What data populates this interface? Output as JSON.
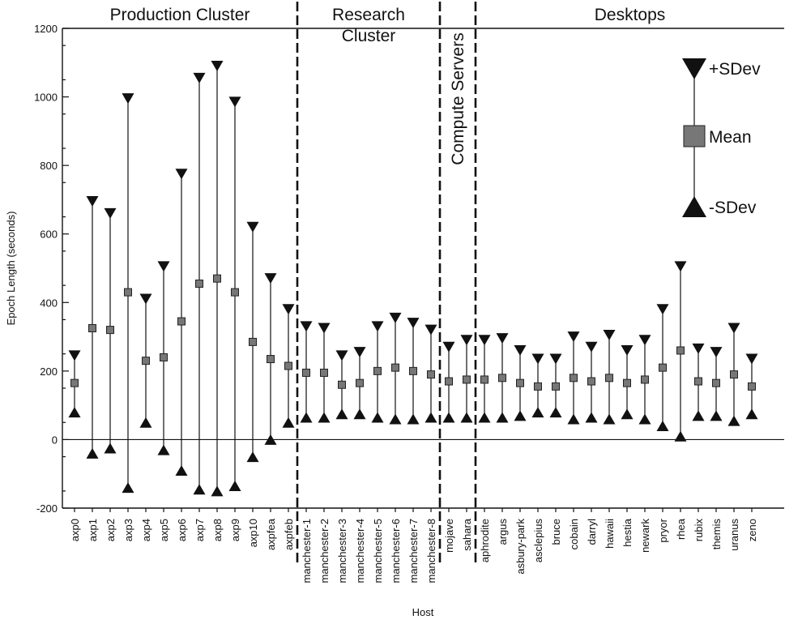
{
  "chart_data": {
    "type": "errorbar",
    "xlabel": "Host",
    "ylabel": "Epoch Length (seconds)",
    "ylim": [
      -200,
      1200
    ],
    "yticks": [
      -200,
      0,
      200,
      400,
      600,
      800,
      1000,
      1200
    ],
    "grid": false,
    "legend": {
      "placement": "top-right",
      "entries": [
        {
          "name": "+SDev",
          "marker": "down-triangle"
        },
        {
          "name": "Mean",
          "marker": "square"
        },
        {
          "name": "-SDev",
          "marker": "up-triangle"
        }
      ]
    },
    "regions": [
      {
        "name": "Production Cluster",
        "lines": [
          "Production Cluster"
        ],
        "orientation": "horizontal",
        "start": 0,
        "end": 12
      },
      {
        "name": "Research Cluster",
        "lines": [
          "Research",
          "Cluster"
        ],
        "orientation": "horizontal",
        "start": 13,
        "end": 20
      },
      {
        "name": "Compute Servers",
        "lines": [
          "Compute Servers"
        ],
        "orientation": "vertical",
        "start": 21,
        "end": 22
      },
      {
        "name": "Desktops",
        "lines": [
          "Desktops"
        ],
        "orientation": "horizontal",
        "start": 23,
        "end": 39
      }
    ],
    "categories": [
      "axp0",
      "axp1",
      "axp2",
      "axp3",
      "axp4",
      "axp5",
      "axp6",
      "axp7",
      "axp8",
      "axp9",
      "axp10",
      "axpfea",
      "axpfeb",
      "manchester-1",
      "manchester-2",
      "manchester-3",
      "manchester-4",
      "manchester-5",
      "manchester-6",
      "manchester-7",
      "manchester-8",
      "mojave",
      "sahara",
      "aphrodite",
      "argus",
      "asbury-park",
      "asclepius",
      "bruce",
      "cobain",
      "darryl",
      "hawaii",
      "hestia",
      "newark",
      "pryor",
      "rhea",
      "rubix",
      "themis",
      "uranus",
      "zeno"
    ],
    "series": [
      {
        "name": "+SDev",
        "values": [
          245,
          695,
          660,
          995,
          410,
          505,
          775,
          1055,
          1090,
          985,
          620,
          470,
          380,
          330,
          325,
          245,
          255,
          330,
          355,
          340,
          320,
          270,
          290,
          290,
          295,
          260,
          235,
          235,
          300,
          270,
          305,
          260,
          290,
          380,
          505,
          265,
          255,
          325,
          235
        ]
      },
      {
        "name": "Mean",
        "values": [
          165,
          325,
          320,
          430,
          230,
          240,
          345,
          455,
          470,
          430,
          285,
          235,
          215,
          195,
          195,
          160,
          165,
          200,
          210,
          200,
          190,
          170,
          175,
          175,
          180,
          165,
          155,
          155,
          180,
          170,
          180,
          165,
          175,
          210,
          260,
          170,
          165,
          190,
          155
        ]
      },
      {
        "name": "-SDev",
        "values": [
          80,
          -40,
          -25,
          -140,
          50,
          -30,
          -90,
          -145,
          -150,
          -135,
          -50,
          0,
          50,
          65,
          65,
          75,
          75,
          65,
          60,
          60,
          65,
          65,
          65,
          65,
          65,
          70,
          80,
          80,
          60,
          65,
          60,
          75,
          60,
          40,
          10,
          70,
          70,
          55,
          75
        ]
      }
    ]
  }
}
